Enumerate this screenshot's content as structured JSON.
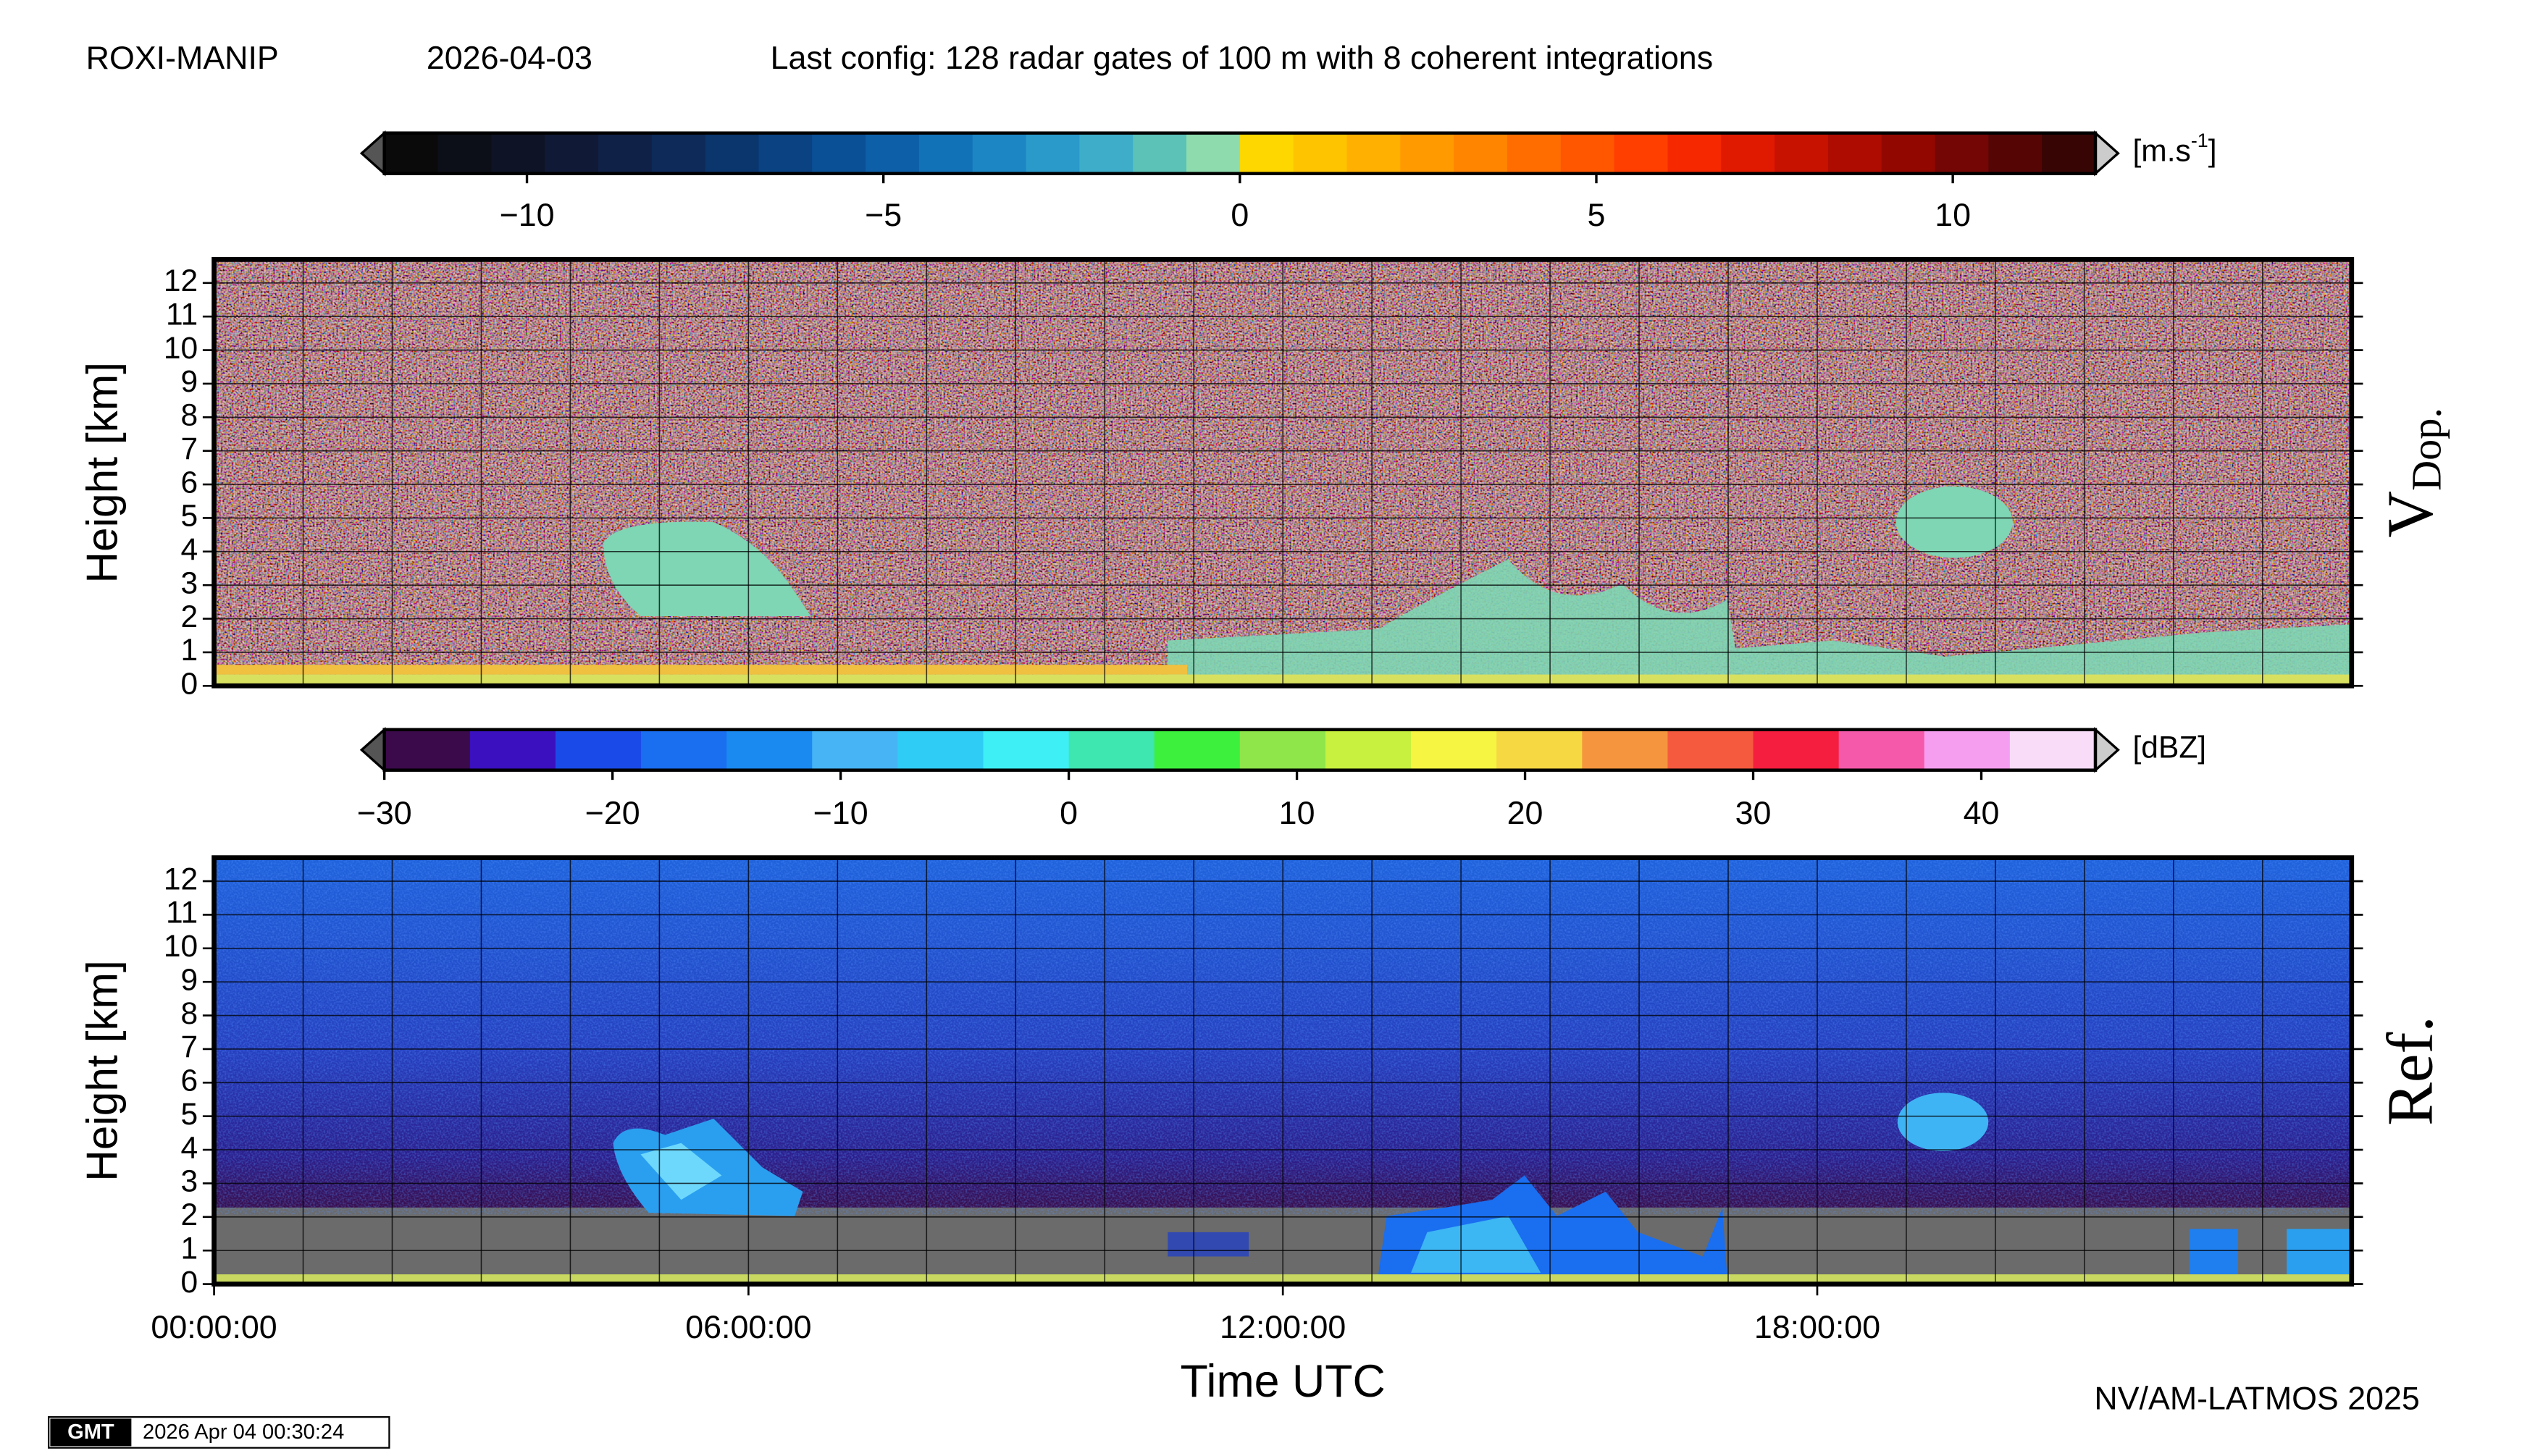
{
  "header": {
    "station": "ROXI-MANIP",
    "date": "2026-04-03",
    "config": "Last config: 128 radar gates of 100 m with 8 coherent integrations"
  },
  "chart_data": [
    {
      "type": "heatmap",
      "label": "V",
      "label_sub": "Dop.",
      "ylabel": "Height [km]",
      "xlim": [
        0,
        24
      ],
      "xgrid": [
        0,
        1,
        2,
        3,
        4,
        5,
        6,
        7,
        8,
        9,
        10,
        11,
        12,
        13,
        14,
        15,
        16,
        17,
        18,
        19,
        20,
        21,
        22,
        23,
        24
      ],
      "ylim": [
        0,
        12.7
      ],
      "yticks": [
        0,
        1,
        2,
        3,
        4,
        5,
        6,
        7,
        8,
        9,
        10,
        11,
        12
      ],
      "grid": true,
      "colorbar": {
        "lim": [
          -12,
          12
        ],
        "ticks": [
          {
            "value": -10,
            "label": "−10"
          },
          {
            "value": -5,
            "label": "−5"
          },
          0,
          5,
          10
        ],
        "unit": "[m.s",
        "unit_sup": "-1",
        "unit_end": "]",
        "colors": [
          "#0a0a0a",
          "#0c0f18",
          "#0e1426",
          "#101a36",
          "#0f2146",
          "#0d2a58",
          "#0b356d",
          "#0a4282",
          "#0a5096",
          "#0d60a8",
          "#1272b8",
          "#1c86c4",
          "#2a9acb",
          "#3eadc9",
          "#5cc2b8",
          "#8edcae",
          "#ffd700",
          "#ffc400",
          "#ffb000",
          "#ff9a00",
          "#ff8400",
          "#ff6d00",
          "#ff5600",
          "#ff3f00",
          "#f52800",
          "#e01a00",
          "#c81200",
          "#ae0c00",
          "#920800",
          "#750606",
          "#560505",
          "#380505"
        ]
      }
    },
    {
      "type": "heatmap",
      "label": "Ref.",
      "ylabel": "Height [km]",
      "xlabel": "Time UTC",
      "xlim": [
        0,
        24
      ],
      "xgrid": [
        0,
        1,
        2,
        3,
        4,
        5,
        6,
        7,
        8,
        9,
        10,
        11,
        12,
        13,
        14,
        15,
        16,
        17,
        18,
        19,
        20,
        21,
        22,
        23,
        24
      ],
      "xticks": [
        {
          "value": 0,
          "label": "00:00:00"
        },
        {
          "value": 6,
          "label": "06:00:00"
        },
        {
          "value": 12,
          "label": "12:00:00"
        },
        {
          "value": 18,
          "label": "18:00:00"
        }
      ],
      "ylim": [
        0,
        12.7
      ],
      "yticks": [
        0,
        1,
        2,
        3,
        4,
        5,
        6,
        7,
        8,
        9,
        10,
        11,
        12
      ],
      "grid": true,
      "colorbar": {
        "lim": [
          -30,
          45
        ],
        "ticks": [
          {
            "value": -30,
            "label": "−30"
          },
          {
            "value": -20,
            "label": "−20"
          },
          {
            "value": -10,
            "label": "−10"
          },
          0,
          10,
          20,
          30,
          40
        ],
        "unit": "[dBZ]",
        "colors": [
          "#3b0a4a",
          "#3a10bf",
          "#1a4be8",
          "#1a6ef0",
          "#1a8af0",
          "#46b4f5",
          "#2fcdf5",
          "#3ef0f5",
          "#3ee6b0",
          "#3ef03e",
          "#8ee64a",
          "#c8f03e",
          "#f5f542",
          "#f5d842",
          "#f5963e",
          "#f55a3e",
          "#f51e3e",
          "#f55aaa",
          "#f59ef0",
          "#f8dcf8"
        ]
      }
    }
  ],
  "footer": {
    "credit": "NV/AM-LATMOS 2025",
    "logo": "GMT",
    "timestamp": "2026 Apr 04 00:30:24"
  }
}
